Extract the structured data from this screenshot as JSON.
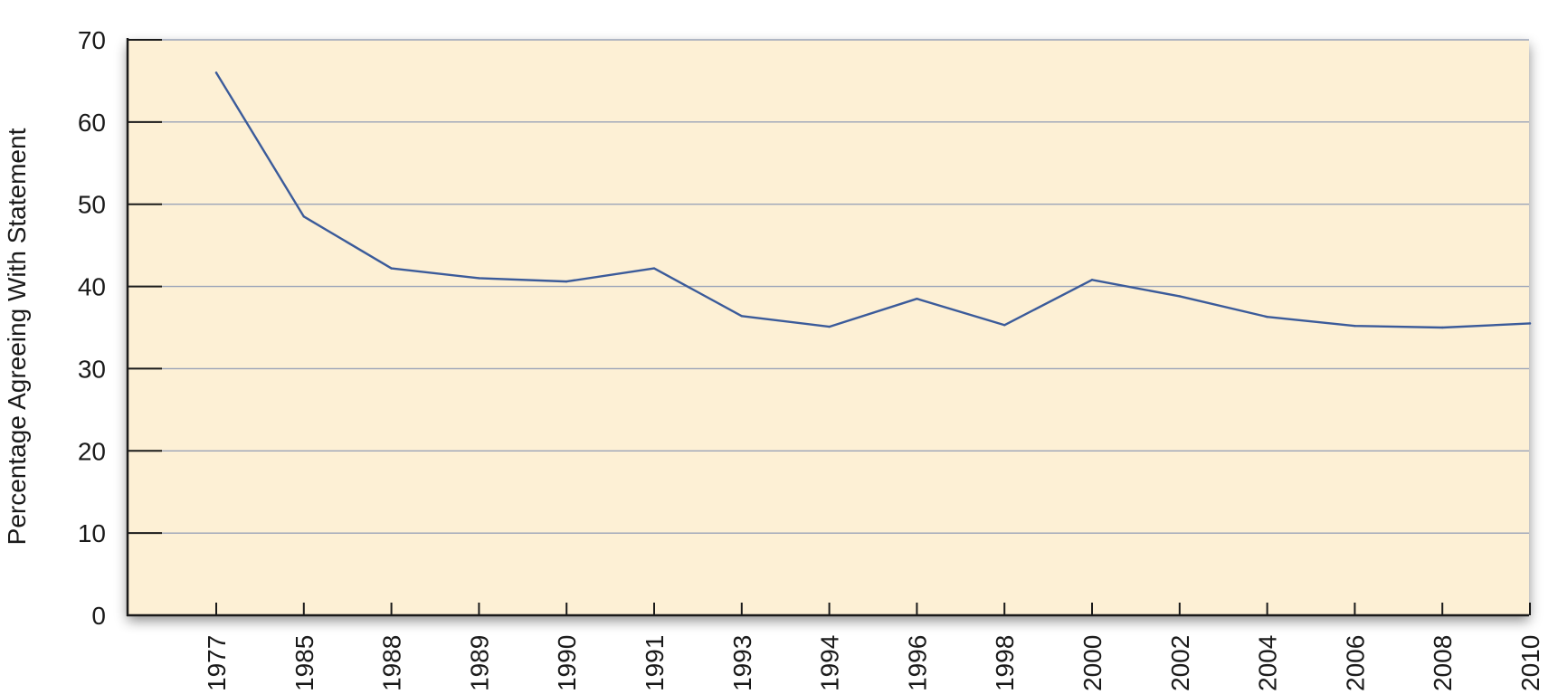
{
  "chart_data": {
    "type": "line",
    "title": "",
    "xlabel": "",
    "ylabel": "Percentage Agreeing With Statement",
    "ylim": [
      0,
      70
    ],
    "yticks": [
      0,
      10,
      20,
      30,
      40,
      50,
      60,
      70
    ],
    "grid": true,
    "legend": "none",
    "categories": [
      "1977",
      "1985",
      "1988",
      "1989",
      "1990",
      "1991",
      "1993",
      "1994",
      "1996",
      "1998",
      "2000",
      "2002",
      "2004",
      "2006",
      "2008",
      "2010"
    ],
    "series": [
      {
        "values": [
          66,
          48.5,
          42.2,
          41,
          40.6,
          42.2,
          36.4,
          35.1,
          38.5,
          35.3,
          40.8,
          38.8,
          36.3,
          35.2,
          35,
          35.5
        ]
      }
    ],
    "colors": {
      "plot_background": "#fdf0d5",
      "line": "#3b5b9a",
      "gridline": "#9aa3b8",
      "axis": "#1a1a1a"
    }
  }
}
